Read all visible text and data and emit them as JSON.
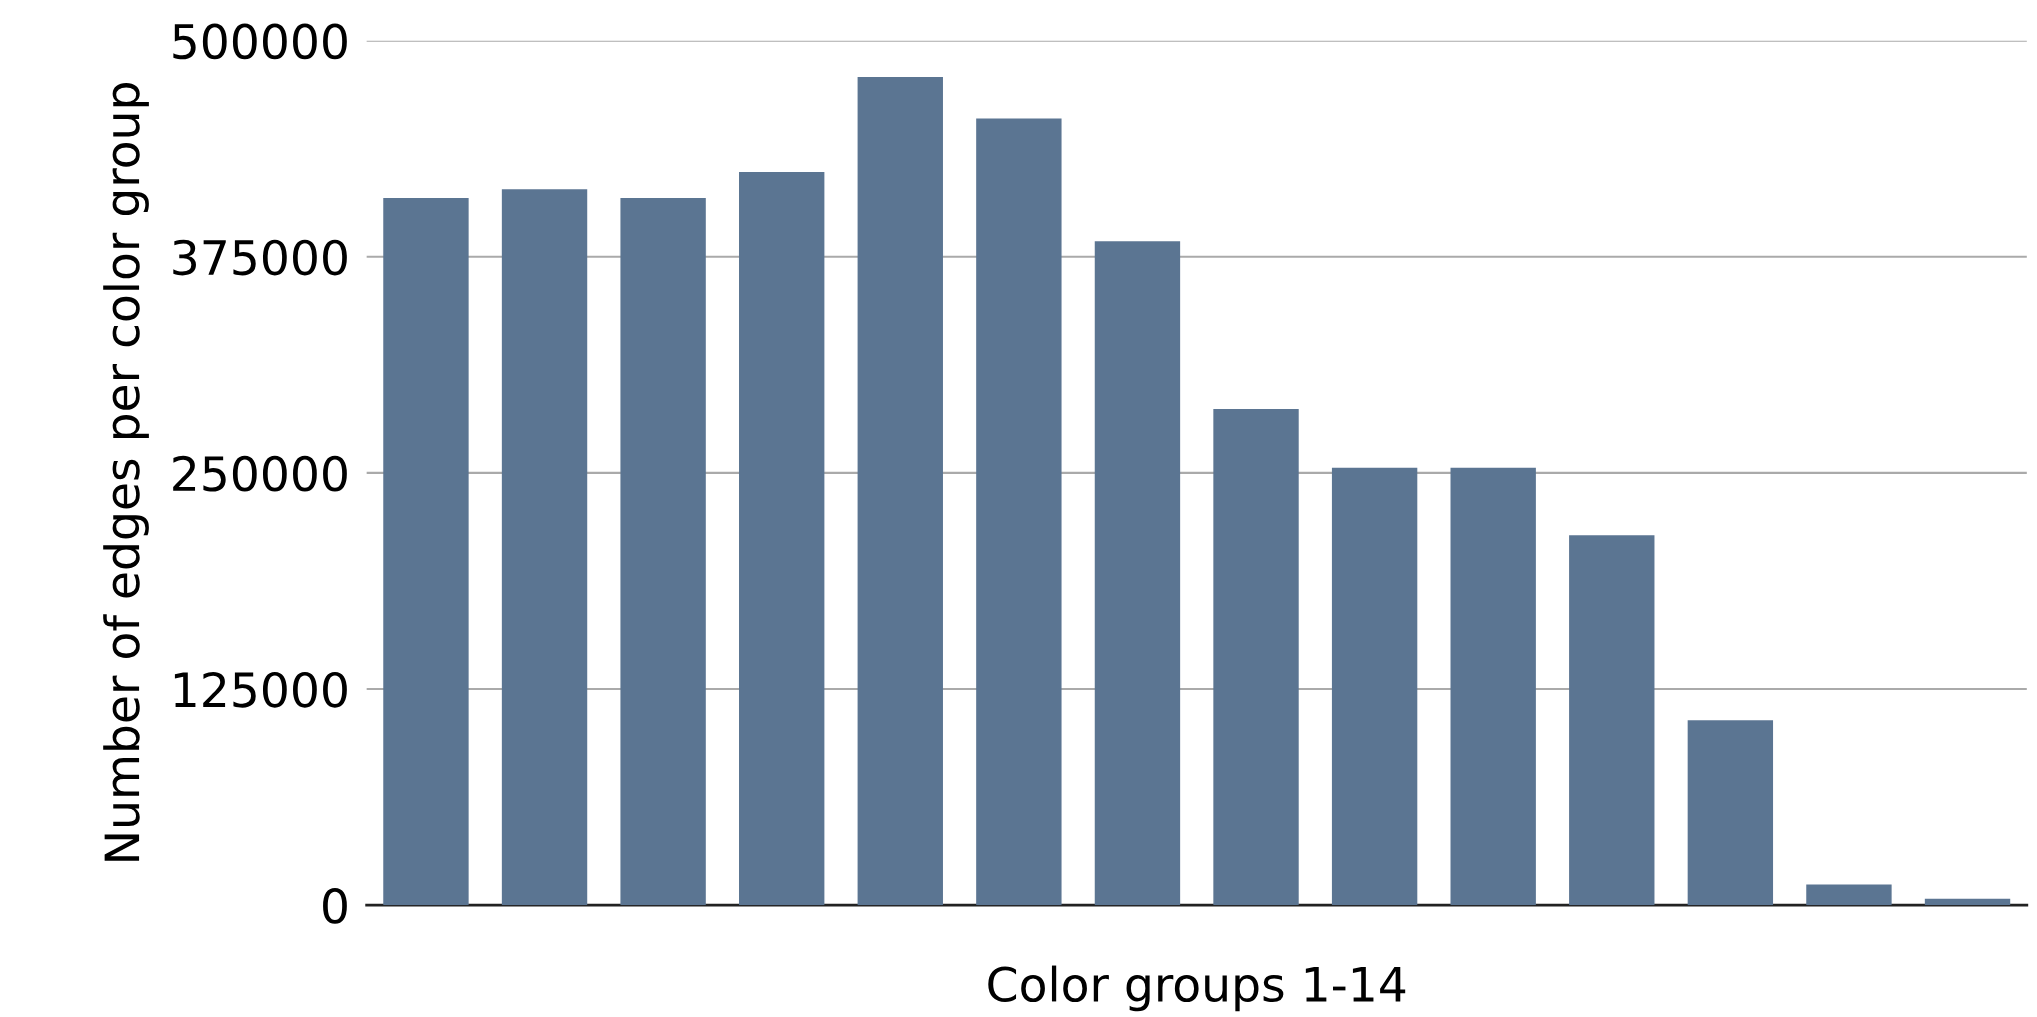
{
  "chart_data": {
    "type": "bar",
    "xlabel": "Color groups 1-14",
    "ylabel": "Number of edges per color group",
    "categories": [
      null,
      null,
      null,
      null,
      null,
      null,
      null,
      null,
      null,
      null,
      null,
      null,
      null,
      null
    ],
    "values": [
      409000,
      414000,
      409000,
      424000,
      479000,
      455000,
      384000,
      287000,
      253000,
      253000,
      214000,
      107000,
      12000,
      3700
    ],
    "color": "#5b7592",
    "ylim": [
      0,
      500000
    ],
    "yticks": [
      0,
      125000,
      250000,
      375000,
      500000
    ],
    "grid": "y",
    "legend": false
  }
}
